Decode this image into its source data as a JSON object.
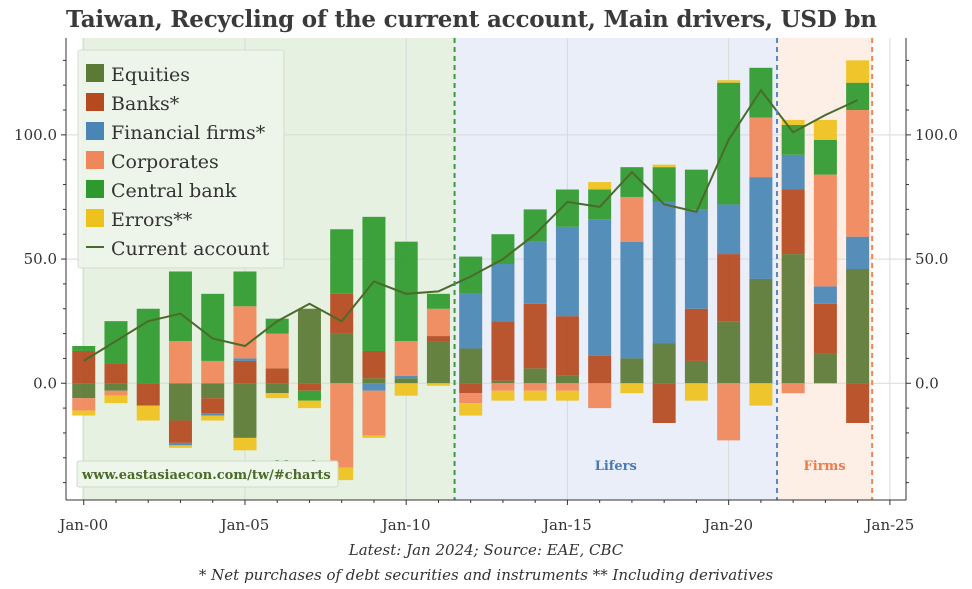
{
  "title": "Taiwan, Recycling of the current account, Main drivers, USD bn",
  "footnotes": {
    "line1": "Latest: Jan 2024; Source: EAE, CBC",
    "line2": "* Net purchases of debt securities and instruments ** Including derivatives"
  },
  "source_url": "www.eastasiaecon.com/tw/#charts",
  "colors": {
    "Equities": "#5b7a35",
    "Banks*": "#b5491f",
    "Financial firms*": "#4a86b5",
    "Corporates": "#f0875a",
    "Central bank": "#2e9a2e",
    "Errors**": "#eec21c",
    "Current account": "#4a6b2a",
    "region_central_bank": "#e6f1e2",
    "region_lifers": "#e9eef8",
    "region_firms": "#fdeee6",
    "divider_central_bank": "#3a9a3a",
    "divider_lifers": "#5b86c5",
    "divider_firms": "#f0875a",
    "label_central_bank": "#3a8a2a",
    "label_lifers": "#4a7ab5",
    "label_firms": "#f07a4a"
  },
  "chart_data": {
    "type": "bar",
    "stacked": true,
    "x": [
      2000,
      2001,
      2002,
      2003,
      2004,
      2005,
      2006,
      2007,
      2008,
      2009,
      2010,
      2011,
      2012,
      2013,
      2014,
      2015,
      2016,
      2017,
      2018,
      2019,
      2020,
      2021,
      2022,
      2023,
      2024
    ],
    "xticks": [
      {
        "value": 2000,
        "label": "Jan-00"
      },
      {
        "value": 2005,
        "label": "Jan-05"
      },
      {
        "value": 2010,
        "label": "Jan-10"
      },
      {
        "value": 2015,
        "label": "Jan-15"
      },
      {
        "value": 2020,
        "label": "Jan-20"
      },
      {
        "value": 2025,
        "label": "Jan-25"
      }
    ],
    "xlim": [
      1999.45,
      2025.5
    ],
    "ylim": [
      -47,
      139
    ],
    "yticks": [
      0,
      50,
      100
    ],
    "ytick_labels": [
      "0.0",
      "50.0",
      "100.0"
    ],
    "grid": true,
    "legend_position": "top-left",
    "series": [
      {
        "name": "Equities",
        "values": [
          -6,
          -3,
          0,
          -15,
          -6,
          -22,
          -4,
          30,
          20,
          2,
          2,
          17,
          14,
          1,
          6,
          3,
          0,
          10,
          16,
          9,
          25,
          42,
          52,
          12,
          46
        ]
      },
      {
        "name": "Banks*",
        "values": [
          13,
          8,
          -9,
          -9,
          -6,
          9,
          6,
          -3,
          16,
          11,
          0,
          2,
          -4,
          24,
          26,
          24,
          11,
          0,
          -16,
          21,
          27,
          0,
          26,
          20,
          -16
        ]
      },
      {
        "name": "Financial firms*",
        "values": [
          0,
          0,
          0,
          -1,
          -1,
          1,
          0,
          0,
          0,
          -3,
          1,
          0,
          22,
          23,
          25,
          36,
          55,
          47,
          57,
          40,
          20,
          41,
          14,
          7,
          13
        ]
      },
      {
        "name": "Corporates",
        "values": [
          -5,
          -2,
          0,
          17,
          9,
          21,
          14,
          0,
          -34,
          -18,
          14,
          11,
          -4,
          -3,
          -3,
          -3,
          -10,
          18,
          0,
          0,
          -23,
          24,
          -4,
          45,
          51
        ]
      },
      {
        "name": "Central bank",
        "values": [
          2,
          17,
          30,
          28,
          27,
          14,
          6,
          -4,
          26,
          54,
          40,
          6,
          15,
          12,
          13,
          15,
          12,
          12,
          14,
          16,
          49,
          20,
          12,
          14,
          11
        ]
      },
      {
        "name": "Errors**",
        "values": [
          -2,
          -3,
          -6,
          -1,
          -2,
          -5,
          -2,
          -3,
          -5,
          -1,
          -5,
          -1,
          -5,
          -4,
          -4,
          -4,
          3,
          -4,
          1,
          -7,
          1,
          -9,
          2,
          8,
          9
        ]
      }
    ],
    "line": {
      "name": "Current account",
      "values": [
        9,
        17,
        25,
        28,
        18,
        15,
        25,
        32,
        25,
        41,
        36,
        37,
        43,
        50,
        60,
        73,
        71,
        85,
        72,
        69,
        98,
        118,
        101,
        108,
        114
      ]
    },
    "regions": [
      {
        "label": "Central bank",
        "from": 1999.45,
        "to": 2011.5
      },
      {
        "label": "Lifers",
        "from": 2011.5,
        "to": 2021.5
      },
      {
        "label": "Firms",
        "from": 2021.5,
        "to": 2024.45
      }
    ]
  }
}
